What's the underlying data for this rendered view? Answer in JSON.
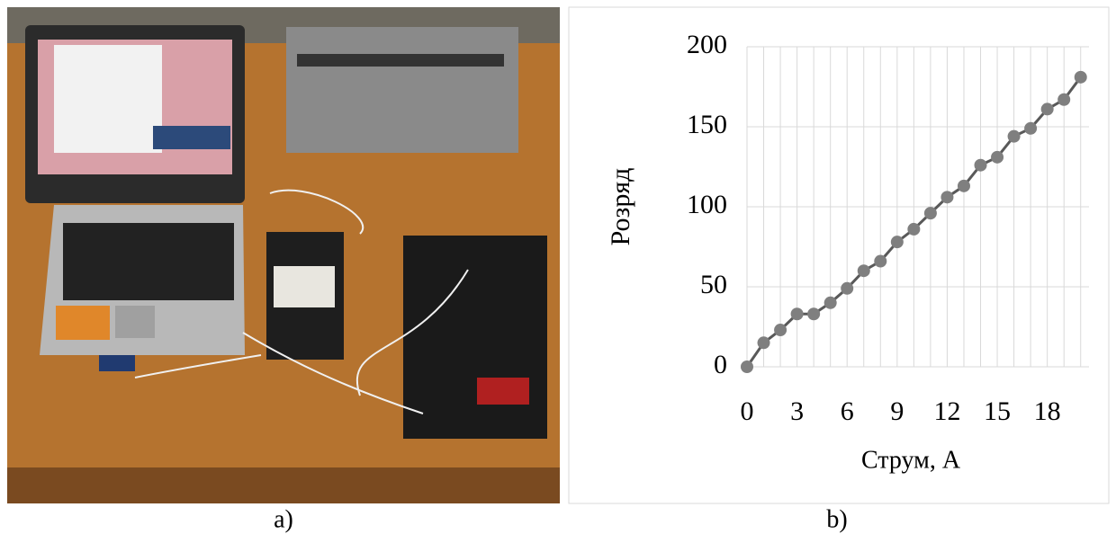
{
  "captions": [
    "a)",
    "b)"
  ],
  "chart_data": {
    "type": "line",
    "ylabel": "Розряд",
    "xlabel": "Струм, А",
    "x": [
      0,
      1,
      2,
      3,
      4,
      5,
      6,
      7,
      8,
      9,
      10,
      11,
      12,
      13,
      14,
      15,
      16,
      17,
      18,
      19,
      20
    ],
    "series": [
      {
        "color": "#595959",
        "marker_color": "#7f7f7f",
        "values": [
          0,
          15,
          23,
          33,
          33,
          40,
          49,
          60,
          66,
          78,
          86,
          96,
          106,
          113,
          126,
          131,
          144,
          149,
          161,
          167,
          181
        ]
      }
    ],
    "xlim": [
      0,
      20.5
    ],
    "ylim": [
      0,
      200
    ],
    "xticks": [
      0,
      3,
      6,
      9,
      12,
      15,
      18
    ],
    "yticks": [
      0,
      50,
      100,
      150,
      200
    ],
    "grid": true,
    "xgrid_step": 1
  }
}
